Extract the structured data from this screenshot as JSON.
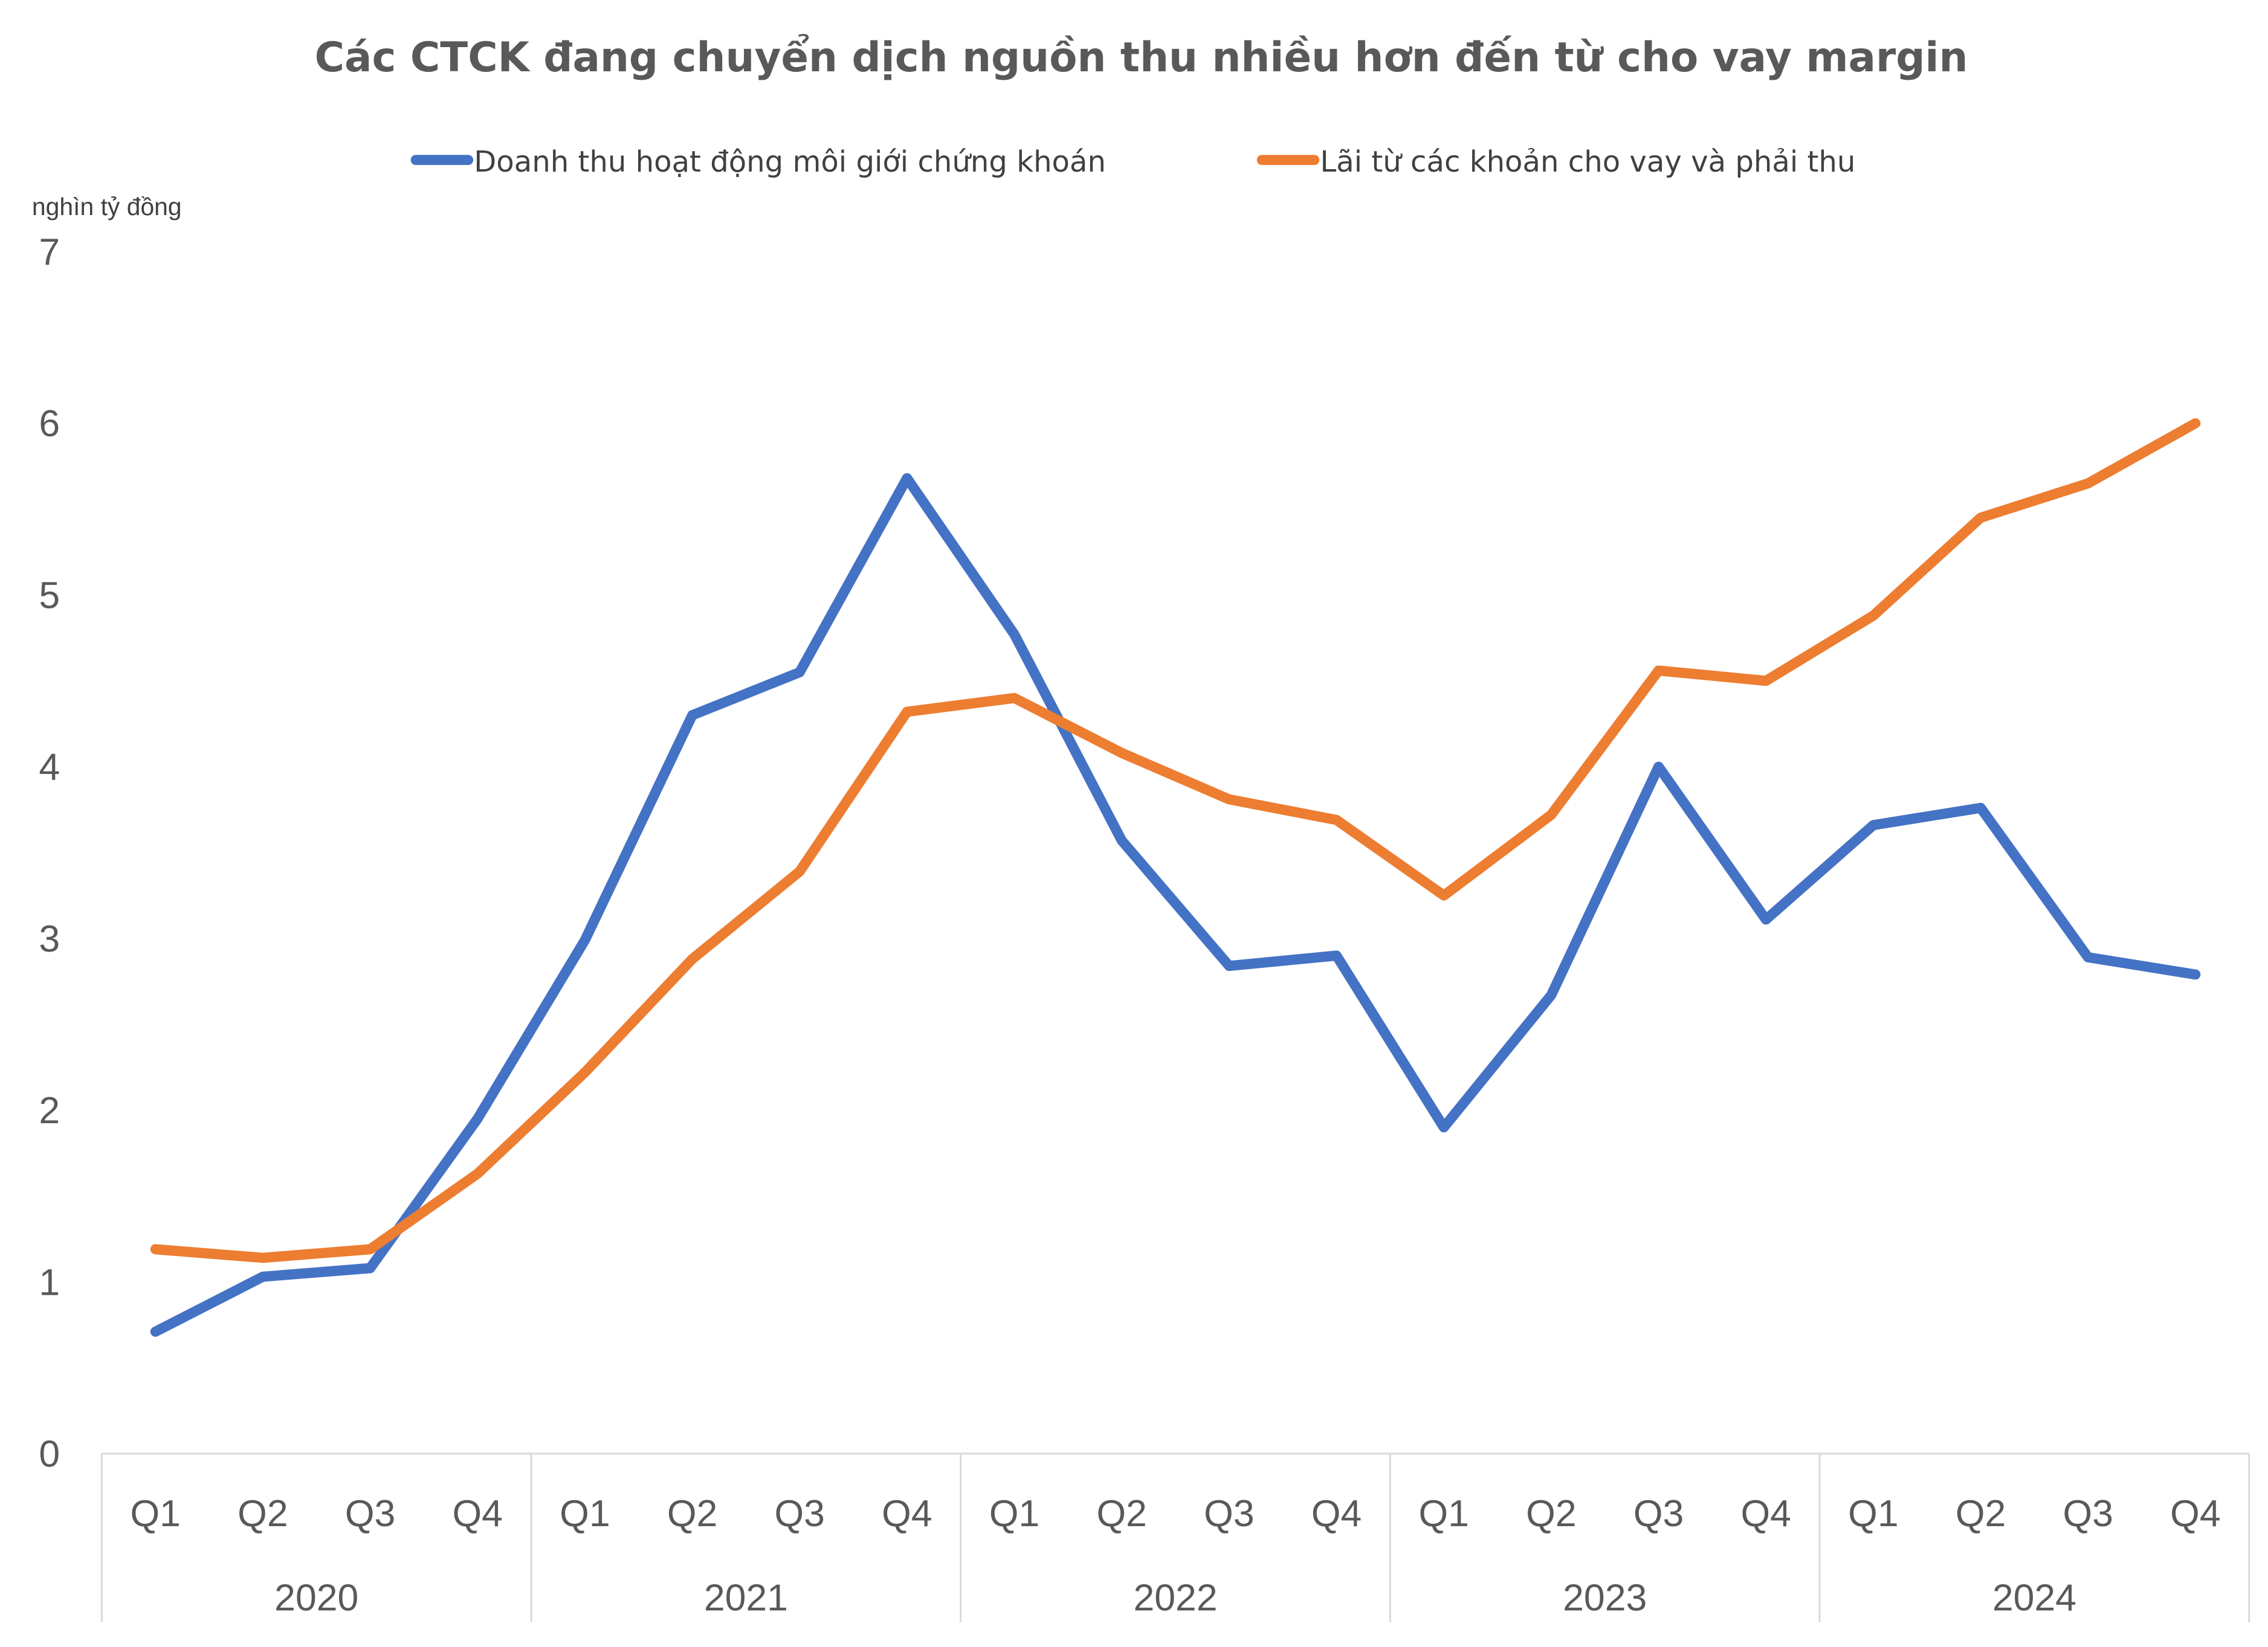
{
  "chart_data": {
    "type": "line",
    "title": "Các CTCK đang chuyển dịch nguồn thu nhiều hơn đến từ cho vay margin",
    "ylabel": "nghìn tỷ đồng",
    "xlabel": "",
    "ylim": [
      0,
      7
    ],
    "yticks": [
      "0",
      "1",
      "2",
      "3",
      "4",
      "5",
      "6",
      "7"
    ],
    "legend_position": "top",
    "grid": false,
    "years": [
      "2020",
      "2021",
      "2022",
      "2023",
      "2024"
    ],
    "quarters": [
      "Q1",
      "Q2",
      "Q3",
      "Q4"
    ],
    "series": [
      {
        "name": "Doanh thu hoạt động môi giới chứng khoán",
        "color": "#4472C4",
        "values": [
          0.71,
          1.03,
          1.08,
          1.95,
          2.99,
          4.3,
          4.55,
          5.68,
          4.77,
          3.57,
          2.84,
          2.9,
          1.9,
          2.67,
          4.0,
          3.11,
          3.66,
          3.76,
          2.89,
          2.79
        ]
      },
      {
        "name": "Lãi từ các khoản cho vay và phải thu",
        "color": "#ED7D31",
        "values": [
          1.19,
          1.14,
          1.19,
          1.63,
          2.22,
          2.88,
          3.39,
          4.32,
          4.4,
          4.08,
          3.81,
          3.69,
          3.25,
          3.72,
          4.56,
          4.5,
          4.88,
          5.45,
          5.65,
          6.0
        ]
      }
    ]
  }
}
